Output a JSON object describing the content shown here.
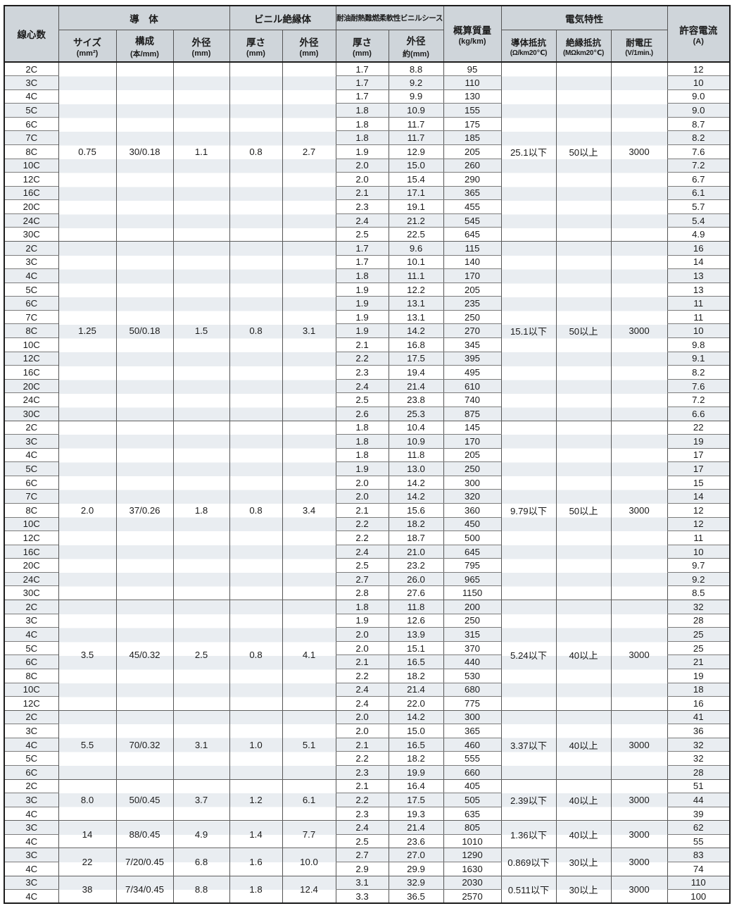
{
  "header": {
    "cores": "線心数",
    "conductor_group": "導　体",
    "insulation_group": "ビニル絶縁体",
    "sheath_group": "耐油耐熱難燃柔軟性ビニルシース",
    "mass_line1": "概算質量",
    "mass_line2": "(kg/km)",
    "electrical_group": "電気特性",
    "current_line1": "許容電流",
    "current_line2": "(A)",
    "subheaders": [
      {
        "key": "size",
        "line1": "サイズ",
        "line2": "(mm²)",
        "small": false
      },
      {
        "key": "construction",
        "line1": "構成",
        "line2": "(本/mm)",
        "small": false
      },
      {
        "key": "conductor-od",
        "line1": "外径",
        "line2": "(mm)",
        "small": false
      },
      {
        "key": "ins-thickness",
        "line1": "厚さ",
        "line2": "(mm)",
        "small": false
      },
      {
        "key": "ins-od",
        "line1": "外径",
        "line2": "(mm)",
        "small": false
      },
      {
        "key": "sheath-thickness",
        "line1": "厚さ",
        "line2": "(mm)",
        "small": false
      },
      {
        "key": "sheath-od",
        "line1": "外径",
        "line2": "約(mm)",
        "small": false
      },
      {
        "key": "cond-resistance",
        "line1": "導体抵抗",
        "line2": "(Ω/km20℃)",
        "small": true
      },
      {
        "key": "ins-resistance",
        "line1": "絶縁抵抗",
        "line2": "(MΩkm20℃)",
        "small": true
      },
      {
        "key": "voltage",
        "line1": "耐電圧",
        "line2": "(V/1min.)",
        "small": true
      }
    ]
  },
  "colors": {
    "header_bg": "#cfd5da",
    "stripe": "#e9edf1",
    "outer_border": "#1c1c1c",
    "vertical_line": "#555555",
    "horizontal_line": "#7d7d7d"
  },
  "groups": [
    {
      "size": "0.75",
      "construction": "30/0.18",
      "conductor_od": "1.1",
      "ins_thickness": "0.8",
      "ins_od": "2.7",
      "cond_resistance": "25.1以下",
      "ins_resistance": "50以上",
      "withstand_voltage": "3000",
      "rows": [
        [
          "2C",
          "1.7",
          "8.8",
          "95",
          "12"
        ],
        [
          "3C",
          "1.7",
          "9.2",
          "110",
          "10"
        ],
        [
          "4C",
          "1.7",
          "9.9",
          "130",
          "9.0"
        ],
        [
          "5C",
          "1.8",
          "10.9",
          "155",
          "9.0"
        ],
        [
          "6C",
          "1.8",
          "11.7",
          "175",
          "8.7"
        ],
        [
          "7C",
          "1.8",
          "11.7",
          "185",
          "8.2"
        ],
        [
          "8C",
          "1.9",
          "12.9",
          "205",
          "7.6"
        ],
        [
          "10C",
          "2.0",
          "15.0",
          "260",
          "7.2"
        ],
        [
          "12C",
          "2.0",
          "15.4",
          "290",
          "6.7"
        ],
        [
          "16C",
          "2.1",
          "17.1",
          "365",
          "6.1"
        ],
        [
          "20C",
          "2.3",
          "19.1",
          "455",
          "5.7"
        ],
        [
          "24C",
          "2.4",
          "21.2",
          "545",
          "5.4"
        ],
        [
          "30C",
          "2.5",
          "22.5",
          "645",
          "4.9"
        ]
      ]
    },
    {
      "size": "1.25",
      "construction": "50/0.18",
      "conductor_od": "1.5",
      "ins_thickness": "0.8",
      "ins_od": "3.1",
      "cond_resistance": "15.1以下",
      "ins_resistance": "50以上",
      "withstand_voltage": "3000",
      "rows": [
        [
          "2C",
          "1.7",
          "9.6",
          "115",
          "16"
        ],
        [
          "3C",
          "1.7",
          "10.1",
          "140",
          "14"
        ],
        [
          "4C",
          "1.8",
          "11.1",
          "170",
          "13"
        ],
        [
          "5C",
          "1.9",
          "12.2",
          "205",
          "13"
        ],
        [
          "6C",
          "1.9",
          "13.1",
          "235",
          "11"
        ],
        [
          "7C",
          "1.9",
          "13.1",
          "250",
          "11"
        ],
        [
          "8C",
          "1.9",
          "14.2",
          "270",
          "10"
        ],
        [
          "10C",
          "2.1",
          "16.8",
          "345",
          "9.8"
        ],
        [
          "12C",
          "2.2",
          "17.5",
          "395",
          "9.1"
        ],
        [
          "16C",
          "2.3",
          "19.4",
          "495",
          "8.2"
        ],
        [
          "20C",
          "2.4",
          "21.4",
          "610",
          "7.6"
        ],
        [
          "24C",
          "2.5",
          "23.8",
          "740",
          "7.2"
        ],
        [
          "30C",
          "2.6",
          "25.3",
          "875",
          "6.6"
        ]
      ]
    },
    {
      "size": "2.0",
      "construction": "37/0.26",
      "conductor_od": "1.8",
      "ins_thickness": "0.8",
      "ins_od": "3.4",
      "cond_resistance": "9.79以下",
      "ins_resistance": "50以上",
      "withstand_voltage": "3000",
      "rows": [
        [
          "2C",
          "1.8",
          "10.4",
          "145",
          "22"
        ],
        [
          "3C",
          "1.8",
          "10.9",
          "170",
          "19"
        ],
        [
          "4C",
          "1.8",
          "11.8",
          "205",
          "17"
        ],
        [
          "5C",
          "1.9",
          "13.0",
          "250",
          "17"
        ],
        [
          "6C",
          "2.0",
          "14.2",
          "300",
          "15"
        ],
        [
          "7C",
          "2.0",
          "14.2",
          "320",
          "14"
        ],
        [
          "8C",
          "2.1",
          "15.6",
          "360",
          "12"
        ],
        [
          "10C",
          "2.2",
          "18.2",
          "450",
          "12"
        ],
        [
          "12C",
          "2.2",
          "18.7",
          "500",
          "11"
        ],
        [
          "16C",
          "2.4",
          "21.0",
          "645",
          "10"
        ],
        [
          "20C",
          "2.5",
          "23.2",
          "795",
          "9.7"
        ],
        [
          "24C",
          "2.7",
          "26.0",
          "965",
          "9.2"
        ],
        [
          "30C",
          "2.8",
          "27.6",
          "1150",
          "8.5"
        ]
      ]
    },
    {
      "size": "3.5",
      "construction": "45/0.32",
      "conductor_od": "2.5",
      "ins_thickness": "0.8",
      "ins_od": "4.1",
      "cond_resistance": "5.24以下",
      "ins_resistance": "40以上",
      "withstand_voltage": "3000",
      "rows": [
        [
          "2C",
          "1.8",
          "11.8",
          "200",
          "32"
        ],
        [
          "3C",
          "1.9",
          "12.6",
          "250",
          "28"
        ],
        [
          "4C",
          "2.0",
          "13.9",
          "315",
          "25"
        ],
        [
          "5C",
          "2.0",
          "15.1",
          "370",
          "25"
        ],
        [
          "6C",
          "2.1",
          "16.5",
          "440",
          "21"
        ],
        [
          "8C",
          "2.2",
          "18.2",
          "530",
          "19"
        ],
        [
          "10C",
          "2.4",
          "21.4",
          "680",
          "18"
        ],
        [
          "12C",
          "2.4",
          "22.0",
          "775",
          "16"
        ]
      ]
    },
    {
      "size": "5.5",
      "construction": "70/0.32",
      "conductor_od": "3.1",
      "ins_thickness": "1.0",
      "ins_od": "5.1",
      "cond_resistance": "3.37以下",
      "ins_resistance": "40以上",
      "withstand_voltage": "3000",
      "rows": [
        [
          "2C",
          "2.0",
          "14.2",
          "300",
          "41"
        ],
        [
          "3C",
          "2.0",
          "15.0",
          "365",
          "36"
        ],
        [
          "4C",
          "2.1",
          "16.5",
          "460",
          "32"
        ],
        [
          "5C",
          "2.2",
          "18.2",
          "555",
          "32"
        ],
        [
          "6C",
          "2.3",
          "19.9",
          "660",
          "28"
        ]
      ]
    },
    {
      "size": "8.0",
      "construction": "50/0.45",
      "conductor_od": "3.7",
      "ins_thickness": "1.2",
      "ins_od": "6.1",
      "cond_resistance": "2.39以下",
      "ins_resistance": "40以上",
      "withstand_voltage": "3000",
      "rows": [
        [
          "2C",
          "2.1",
          "16.4",
          "405",
          "51"
        ],
        [
          "3C",
          "2.2",
          "17.5",
          "505",
          "44"
        ],
        [
          "4C",
          "2.3",
          "19.3",
          "635",
          "39"
        ]
      ]
    },
    {
      "size": "14",
      "construction": "88/0.45",
      "conductor_od": "4.9",
      "ins_thickness": "1.4",
      "ins_od": "7.7",
      "cond_resistance": "1.36以下",
      "ins_resistance": "40以上",
      "withstand_voltage": "3000",
      "rows": [
        [
          "3C",
          "2.4",
          "21.4",
          "805",
          "62"
        ],
        [
          "4C",
          "2.5",
          "23.6",
          "1010",
          "55"
        ]
      ]
    },
    {
      "size": "22",
      "construction": "7/20/0.45",
      "conductor_od": "6.8",
      "ins_thickness": "1.6",
      "ins_od": "10.0",
      "cond_resistance": "0.869以下",
      "ins_resistance": "30以上",
      "withstand_voltage": "3000",
      "rows": [
        [
          "3C",
          "2.7",
          "27.0",
          "1290",
          "83"
        ],
        [
          "4C",
          "2.9",
          "29.9",
          "1630",
          "74"
        ]
      ]
    },
    {
      "size": "38",
      "construction": "7/34/0.45",
      "conductor_od": "8.8",
      "ins_thickness": "1.8",
      "ins_od": "12.4",
      "cond_resistance": "0.511以下",
      "ins_resistance": "30以上",
      "withstand_voltage": "3000",
      "rows": [
        [
          "3C",
          "3.1",
          "32.9",
          "2030",
          "110"
        ],
        [
          "4C",
          "3.3",
          "36.5",
          "2570",
          "100"
        ]
      ]
    }
  ]
}
